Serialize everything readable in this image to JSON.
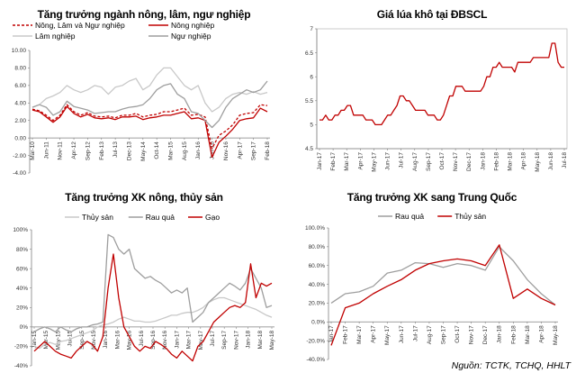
{
  "source": "Nguồn: TCTK, TCHQ, HHLT",
  "colors": {
    "red": "#c00000",
    "gray": "#9e9e9e",
    "lightgray": "#c8c8c8",
    "axis": "#808080"
  },
  "chart_data": [
    {
      "id": "agri",
      "type": "line",
      "title": "Tăng trưởng ngành nông, lâm, ngư nghiệp",
      "ylim": [
        -4,
        10
      ],
      "yticks": [
        "10.00",
        "8.00",
        "6.00",
        "4.00",
        "2.00",
        "0.00",
        "-2.00",
        "-4.00"
      ],
      "xticks": [
        "Mar-10",
        "Jun-11",
        "Nov-11",
        "Apr-12",
        "Sep-12",
        "Feb-13",
        "Jul-13",
        "Dec-13",
        "May-14",
        "Oct-14",
        "Mar-15",
        "Aug-15",
        "Jan-16",
        "Jun-16",
        "Nov-16",
        "Apr-17",
        "Sep-17",
        "Feb-18"
      ],
      "legend": [
        "Nông, Lâm và Ngư nghiệp",
        "Nông nghiệp",
        "Lâm nghiệp",
        "Ngư nghiệp"
      ],
      "series": [
        {
          "name": "Nông, Lâm và Ngư nghiệp",
          "style": "dashed",
          "color": "#c00000",
          "values": [
            3.3,
            3.1,
            2.6,
            2.0,
            2.6,
            3.8,
            3.0,
            2.6,
            2.9,
            2.5,
            2.4,
            2.5,
            2.3,
            2.6,
            2.6,
            2.8,
            2.4,
            2.6,
            2.7,
            3.0,
            3.0,
            3.2,
            3.4,
            2.6,
            2.7,
            2.4,
            -1.2,
            0.3,
            0.8,
            1.5,
            2.6,
            2.8,
            2.9,
            3.8,
            3.7
          ]
        },
        {
          "name": "Nông nghiệp",
          "style": "solid",
          "color": "#c00000",
          "values": [
            3.2,
            3.0,
            2.4,
            1.8,
            2.4,
            3.6,
            2.8,
            2.4,
            2.7,
            2.3,
            2.2,
            2.3,
            2.1,
            2.4,
            2.4,
            2.5,
            2.1,
            2.3,
            2.4,
            2.6,
            2.6,
            2.8,
            3.0,
            2.2,
            2.3,
            2.0,
            -2.2,
            -0.5,
            0.2,
            1.0,
            2.0,
            2.2,
            2.3,
            3.4,
            3.0
          ]
        },
        {
          "name": "Lâm nghiệp",
          "style": "solid",
          "color": "#c8c8c8",
          "values": [
            3.5,
            3.8,
            4.5,
            4.8,
            5.2,
            6.0,
            5.5,
            5.2,
            5.5,
            6.0,
            5.8,
            5.0,
            5.8,
            6.0,
            6.5,
            6.8,
            5.5,
            6.0,
            7.2,
            8.0,
            8.0,
            7.0,
            6.0,
            5.5,
            6.0,
            4.0,
            3.0,
            3.5,
            4.5,
            5.0,
            5.2,
            5.0,
            5.3,
            5.0,
            5.2
          ]
        },
        {
          "name": "Ngư nghiệp",
          "style": "solid",
          "color": "#9e9e9e",
          "values": [
            3.5,
            3.8,
            3.5,
            2.6,
            3.0,
            4.2,
            3.6,
            3.4,
            3.2,
            2.8,
            2.9,
            3.0,
            3.0,
            3.3,
            3.5,
            3.6,
            3.8,
            4.5,
            5.5,
            6.0,
            6.2,
            5.0,
            4.5,
            3.0,
            2.8,
            2.0,
            1.2,
            2.0,
            3.5,
            4.5,
            5.0,
            5.5,
            5.2,
            5.5,
            6.5
          ]
        }
      ]
    },
    {
      "id": "rice",
      "type": "line",
      "title": "Giá lúa khô tại ĐBSCL",
      "ylim": [
        4.5,
        7
      ],
      "yticks": [
        "7",
        "6.5",
        "6",
        "5.5",
        "5",
        "4.5"
      ],
      "xticks": [
        "Jan-17",
        "Feb-17",
        "Mar-17",
        "Apr-17",
        "May-17",
        "Jun-17",
        "Jul-17",
        "Aug-17",
        "Sep-17",
        "Oct-17",
        "Nov-17",
        "Dec-17",
        "Jan-18",
        "Feb-18",
        "Mar-18",
        "Apr-18",
        "May-18",
        "Jun-18",
        "Jul-18"
      ],
      "series": [
        {
          "name": "",
          "color": "#c00000",
          "values": [
            5.1,
            5.1,
            5.2,
            5.1,
            5.1,
            5.2,
            5.2,
            5.3,
            5.3,
            5.4,
            5.4,
            5.2,
            5.2,
            5.2,
            5.2,
            5.1,
            5.1,
            5.1,
            5.0,
            5.0,
            5.0,
            5.1,
            5.2,
            5.2,
            5.3,
            5.4,
            5.6,
            5.6,
            5.5,
            5.5,
            5.4,
            5.3,
            5.3,
            5.3,
            5.3,
            5.2,
            5.2,
            5.2,
            5.1,
            5.1,
            5.2,
            5.4,
            5.6,
            5.6,
            5.8,
            5.8,
            5.8,
            5.7,
            5.7,
            5.7,
            5.7,
            5.7,
            5.7,
            5.8,
            6.0,
            6.0,
            6.2,
            6.2,
            6.3,
            6.2,
            6.2,
            6.2,
            6.2,
            6.1,
            6.3,
            6.3,
            6.3,
            6.3,
            6.3,
            6.4,
            6.4,
            6.4,
            6.4,
            6.4,
            6.4,
            6.7,
            6.7,
            6.3,
            6.2,
            6.2
          ]
        }
      ]
    },
    {
      "id": "export",
      "type": "line",
      "title": "Tăng trưởng XK nông, thủy sản",
      "ylim": [
        -40,
        100
      ],
      "yticks": [
        "100%",
        "80%",
        "60%",
        "40%",
        "20%",
        "0%",
        "-20%",
        "-40%"
      ],
      "xticks": [
        "Jan-15",
        "Mar-15",
        "May-15",
        "Jul-15",
        "Sep-15",
        "Nov-15",
        "Jan-16",
        "Mar-16",
        "May-16",
        "Jul-16",
        "Sep-16",
        "Nov-16",
        "Jan-17",
        "Mar-17",
        "May-17",
        "Jul-17",
        "Sep-17",
        "Nov-17",
        "Jan-18",
        "Mar-18",
        "May-18"
      ],
      "legend": [
        "Thủy sản",
        "Rau quả",
        "Gạo"
      ],
      "series": [
        {
          "name": "Thủy sản",
          "color": "#c8c8c8",
          "values": [
            -20,
            -22,
            -18,
            -16,
            -18,
            -15,
            -14,
            -12,
            -10,
            -8,
            -6,
            -4,
            0,
            2,
            3,
            5,
            8,
            10,
            8,
            6,
            6,
            5,
            5,
            6,
            8,
            10,
            12,
            12,
            14,
            15,
            15,
            17,
            20,
            25,
            28,
            30,
            30,
            28,
            26,
            24,
            22,
            20,
            18,
            15,
            12,
            10
          ]
        },
        {
          "name": "Rau quả",
          "color": "#9e9e9e",
          "values": [
            -5,
            -2,
            0,
            -2,
            -5,
            0,
            -3,
            -5,
            -2,
            0,
            0,
            2,
            3,
            5,
            95,
            92,
            80,
            75,
            80,
            60,
            55,
            50,
            52,
            48,
            45,
            40,
            35,
            38,
            35,
            40,
            5,
            10,
            15,
            25,
            30,
            35,
            40,
            45,
            42,
            38,
            45,
            60,
            50,
            40,
            20,
            22
          ]
        },
        {
          "name": "Gạo",
          "color": "#c00000",
          "values": [
            -25,
            -20,
            -15,
            -20,
            -25,
            -28,
            -30,
            -32,
            -25,
            -20,
            -15,
            -18,
            -25,
            -10,
            40,
            75,
            30,
            0,
            -10,
            -20,
            -25,
            -20,
            -22,
            -15,
            -18,
            -22,
            -28,
            -32,
            -25,
            -30,
            -35,
            -20,
            -15,
            -5,
            5,
            10,
            15,
            20,
            22,
            20,
            25,
            65,
            30,
            45,
            42,
            45
          ]
        }
      ]
    },
    {
      "id": "china",
      "type": "line",
      "title": "Tăng trưởng XK sang Trung Quốc",
      "ylim": [
        -40,
        100
      ],
      "yticks": [
        "100.0%",
        "80.0%",
        "60.0%",
        "40.0%",
        "20.0%",
        "0.0%",
        "-20.0%",
        "-40.0%"
      ],
      "xticks": [
        "Jan-17",
        "Feb-17",
        "Mar-17",
        "Apr-17",
        "May-17",
        "Jun-17",
        "Jul-17",
        "Aug-17",
        "Sep-17",
        "Oct-17",
        "Nov-17",
        "Dec-17",
        "Jan-18",
        "Feb-18",
        "Mar-18",
        "Apr-18",
        "May-18"
      ],
      "legend": [
        "Rau quả",
        "Thủy sản"
      ],
      "series": [
        {
          "name": "Rau quả",
          "color": "#9e9e9e",
          "values": [
            20,
            30,
            32,
            38,
            52,
            55,
            63,
            62,
            58,
            62,
            60,
            55,
            80,
            65,
            45,
            30,
            18
          ]
        },
        {
          "name": "Thủy sản",
          "color": "#c00000",
          "values": [
            -25,
            15,
            20,
            30,
            38,
            45,
            55,
            62,
            65,
            67,
            65,
            60,
            82,
            25,
            35,
            25,
            18
          ]
        }
      ]
    }
  ]
}
